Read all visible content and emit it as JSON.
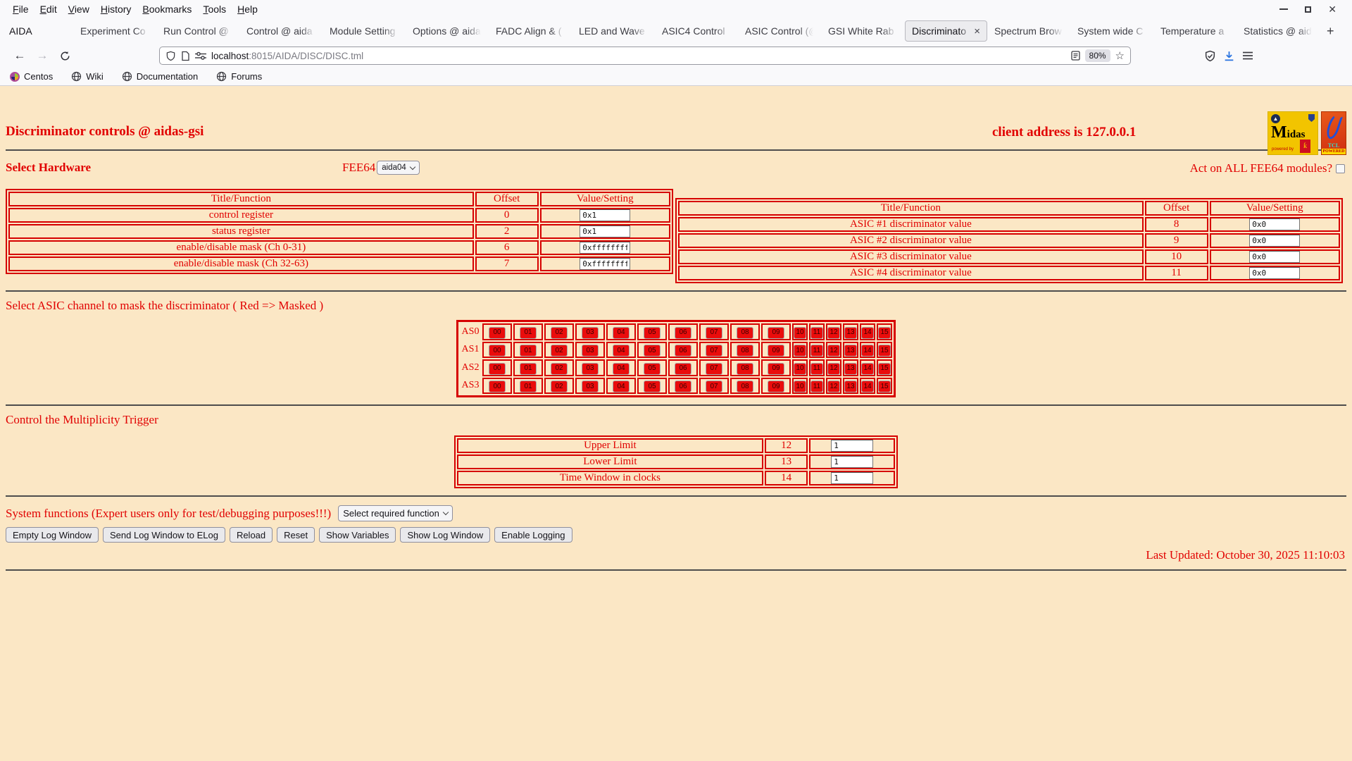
{
  "browser": {
    "menu_items": [
      "File",
      "Edit",
      "View",
      "History",
      "Bookmarks",
      "Tools",
      "Help"
    ],
    "window_controls": {
      "close_glyph": "✕"
    },
    "tabs": [
      {
        "label": "AIDA",
        "active": false
      },
      {
        "label": "Experiment Co",
        "active": false
      },
      {
        "label": "Run Control @",
        "active": false
      },
      {
        "label": "Control @ aida",
        "active": false
      },
      {
        "label": "Module Setting",
        "active": false
      },
      {
        "label": "Options @ aida",
        "active": false
      },
      {
        "label": "FADC Align & (",
        "active": false
      },
      {
        "label": "LED and Wave",
        "active": false
      },
      {
        "label": "ASIC4 Control",
        "active": false
      },
      {
        "label": "ASIC Control (@",
        "active": false
      },
      {
        "label": "GSI White Rab",
        "active": false
      },
      {
        "label": "Discriminato",
        "active": true
      },
      {
        "label": "Spectrum Brow",
        "active": false
      },
      {
        "label": "System wide C",
        "active": false
      },
      {
        "label": "Temperature a",
        "active": false
      },
      {
        "label": "Statistics @ aid",
        "active": false
      }
    ],
    "close_tab_glyph": "×",
    "new_tab_button": "+",
    "url_domain": "localhost",
    "url_path": ":8015/AIDA/DISC/DISC.tml",
    "zoom_level": "80%",
    "bookmarks": [
      {
        "label": "Centos",
        "icon": "centos-icon"
      },
      {
        "label": "Wiki",
        "icon": "globe-icon"
      },
      {
        "label": "Documentation",
        "icon": "globe-icon"
      },
      {
        "label": "Forums",
        "icon": "globe-icon"
      }
    ]
  },
  "page": {
    "title": "Discriminator controls @ aidas-gsi",
    "client_address": "client address is 127.0.0.1",
    "select_hardware": {
      "label": "Select Hardware",
      "fee64_label": "FEE64",
      "fee64_value": "aida04",
      "act_on_all_label": "Act on ALL FEE64 modules?",
      "act_on_all_checked": false
    },
    "register_table": {
      "headers": [
        "Title/Function",
        "Offset",
        "Value/Setting"
      ],
      "rows": [
        {
          "title": "control register",
          "offset": "0",
          "value": "0x1"
        },
        {
          "title": "status register",
          "offset": "2",
          "value": "0x1"
        },
        {
          "title": "enable/disable mask (Ch 0-31)",
          "offset": "6",
          "value": "0xffffffff"
        },
        {
          "title": "enable/disable mask (Ch 32-63)",
          "offset": "7",
          "value": "0xffffffff"
        }
      ]
    },
    "asic_table": {
      "headers": [
        "Title/Function",
        "Offset",
        "Value/Setting"
      ],
      "rows": [
        {
          "title": "ASIC #1 discriminator value",
          "offset": "8",
          "value": "0x0"
        },
        {
          "title": "ASIC #2 discriminator value",
          "offset": "9",
          "value": "0x0"
        },
        {
          "title": "ASIC #3 discriminator value",
          "offset": "10",
          "value": "0x0"
        },
        {
          "title": "ASIC #4 discriminator value",
          "offset": "11",
          "value": "0x0"
        }
      ]
    },
    "mask_section": {
      "label": "Select ASIC channel to mask the discriminator ( Red => Masked )",
      "rows": [
        "AS0",
        "AS1",
        "AS2",
        "AS3"
      ],
      "channels": [
        "00",
        "01",
        "02",
        "03",
        "04",
        "05",
        "06",
        "07",
        "08",
        "09",
        "10",
        "11",
        "12",
        "13",
        "14",
        "15"
      ]
    },
    "multiplicity": {
      "label": "Control the Multiplicity Trigger",
      "rows": [
        {
          "title": "Upper Limit",
          "offset": "12",
          "value": "1"
        },
        {
          "title": "Lower Limit",
          "offset": "13",
          "value": "1"
        },
        {
          "title": "Time Window in clocks",
          "offset": "14",
          "value": "1"
        }
      ]
    },
    "system_functions": {
      "label": "System functions (Expert users only for test/debugging purposes!!!)",
      "select_value": "Select required function"
    },
    "action_buttons": [
      "Empty Log Window",
      "Send Log Window to ELog",
      "Reload",
      "Reset",
      "Show Variables",
      "Show Log Window",
      "Enable Logging"
    ],
    "last_updated": "Last Updated: October 30, 2025 11:10:03",
    "logos": {
      "midas_text": "Midas",
      "midas_powered": "powered by",
      "tcl_text": "TCL",
      "tcl_powered": "POWERED"
    }
  },
  "colors": {
    "page_bg": "#fbe7c5",
    "text_red": "#e10000",
    "border_red": "#d60000",
    "mask_button_bg": "#ea0c0c",
    "chrome_bg": "#f9f9fb",
    "download_blue": "#0060df"
  }
}
